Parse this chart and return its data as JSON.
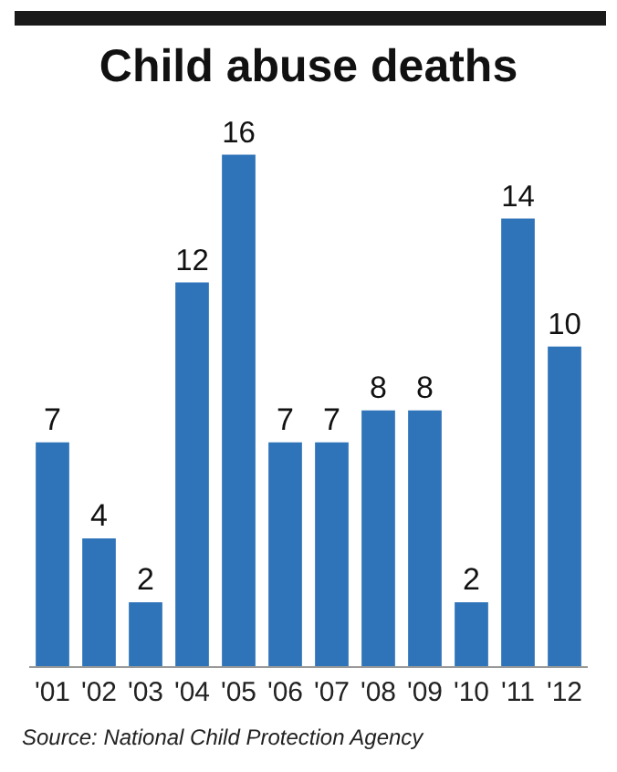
{
  "chart_data": {
    "type": "bar",
    "title": "Child abuse deaths",
    "categories": [
      "'01",
      "'02",
      "'03",
      "'04",
      "'05",
      "'06",
      "'07",
      "'08",
      "'09",
      "'10",
      "'11",
      "'12"
    ],
    "values": [
      7,
      4,
      2,
      12,
      16,
      7,
      7,
      8,
      8,
      2,
      14,
      10
    ],
    "color": "#2f74b9",
    "data_labels": true,
    "annotations": [
      "Source: National Child Protection Agency"
    ]
  }
}
